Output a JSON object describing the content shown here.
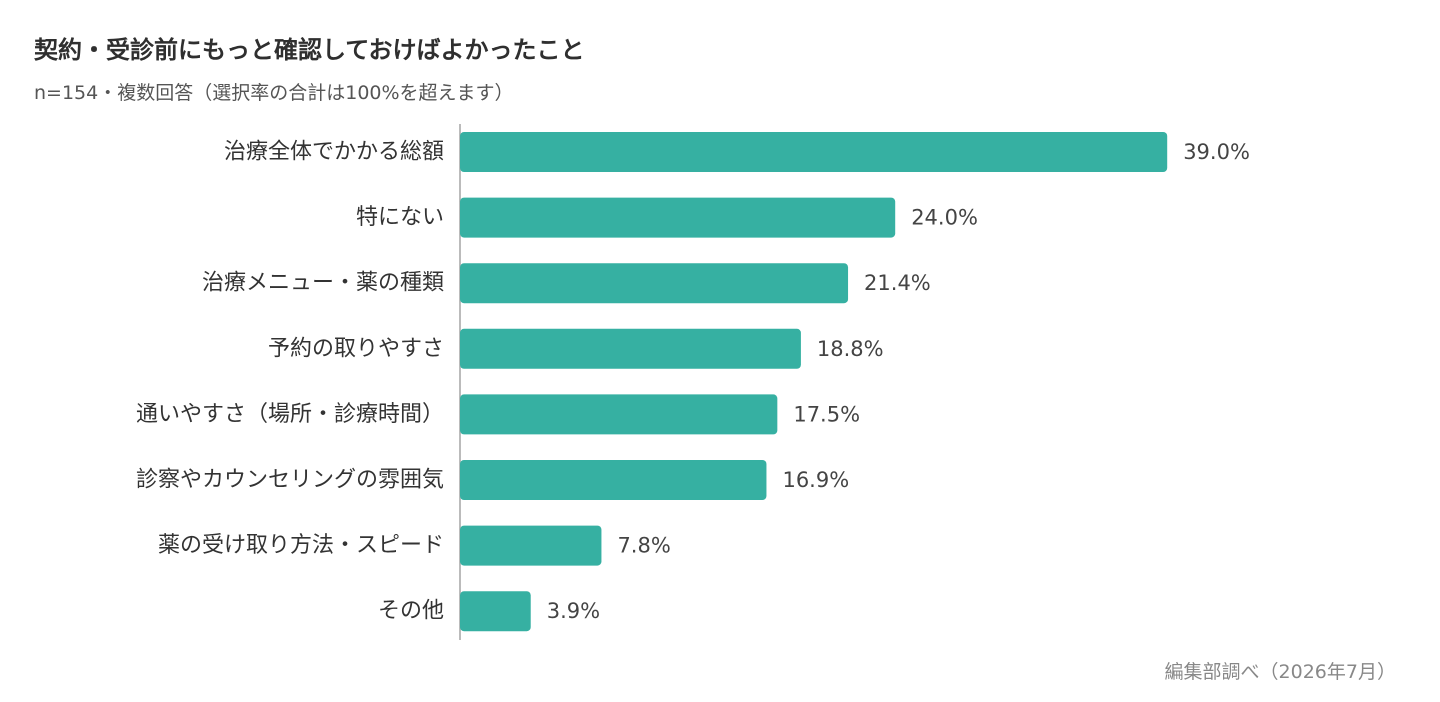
{
  "chart_data": {
    "type": "bar",
    "orientation": "horizontal",
    "title": "契約・受診前にもっと確認しておけばよかったこと",
    "subtitle": "n=154・複数回答（選択率の合計は100%を超えます）",
    "categories": [
      "治療全体でかかる総額",
      "特にない",
      "治療メニュー・薬の種類",
      "予約の取りやすさ",
      "通いやすさ（場所・診療時間）",
      "診察やカウンセリングの雰囲気",
      "薬の受け取り方法・スピード",
      "その他"
    ],
    "values": [
      39.0,
      24.0,
      21.4,
      18.8,
      17.5,
      16.9,
      7.8,
      3.9
    ],
    "value_labels": [
      "39.0%",
      "24.0%",
      "21.4%",
      "18.8%",
      "17.5%",
      "16.9%",
      "7.8%",
      "3.9%"
    ],
    "xlim": [
      0,
      45
    ],
    "grid": false,
    "legend": "none",
    "bar_color": "#36b0a2",
    "axis_color": "#bbbbbb"
  },
  "footer": {
    "source": "編集部調べ（2026年7月）"
  }
}
